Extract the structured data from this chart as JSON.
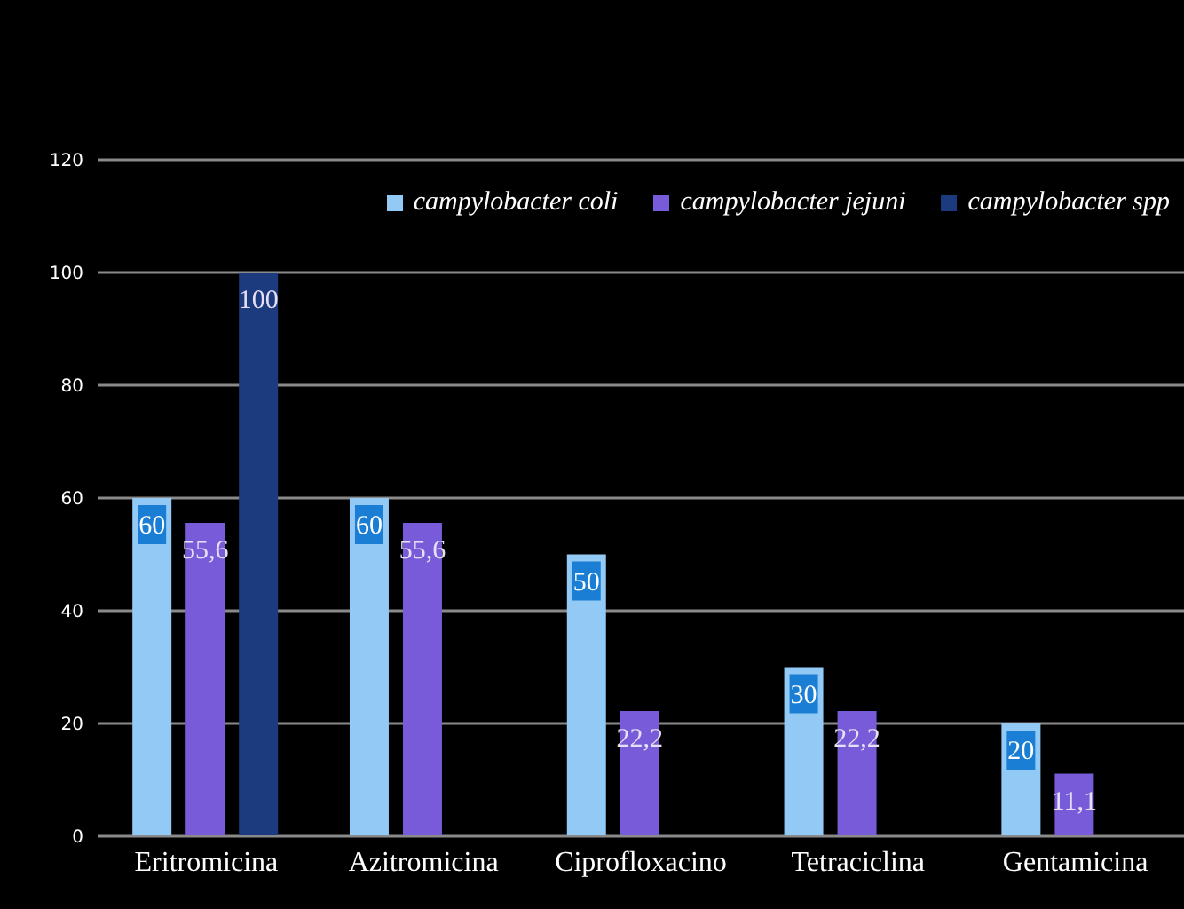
{
  "chart_data": {
    "type": "bar",
    "categories": [
      "Eritromicina",
      "Azitromicina",
      "Ciprofloxacino",
      "Tetraciclina",
      "Gentamicina"
    ],
    "series": [
      {
        "name": "campylobacter coli",
        "color": "#92c9f5",
        "values": [
          60,
          60,
          50,
          30,
          20
        ],
        "value_labels": [
          "60",
          "60",
          "50",
          "30",
          "20"
        ]
      },
      {
        "name": "campylobacter jejuni",
        "color": "#775bd8",
        "values": [
          55.6,
          55.6,
          22.2,
          22.2,
          11.1
        ],
        "value_labels": [
          "55,6",
          "55,6",
          "22,2",
          "22,2",
          "11,1"
        ]
      },
      {
        "name": "campylobacter spp",
        "color": "#1c3a7e",
        "values": [
          100,
          null,
          null,
          null,
          null
        ],
        "value_labels": [
          "100",
          null,
          null,
          null,
          null
        ]
      }
    ],
    "ylim": [
      0,
      120
    ],
    "yticks": [
      0,
      20,
      40,
      60,
      80,
      100,
      120
    ],
    "grid": "y",
    "legend": "top right"
  }
}
